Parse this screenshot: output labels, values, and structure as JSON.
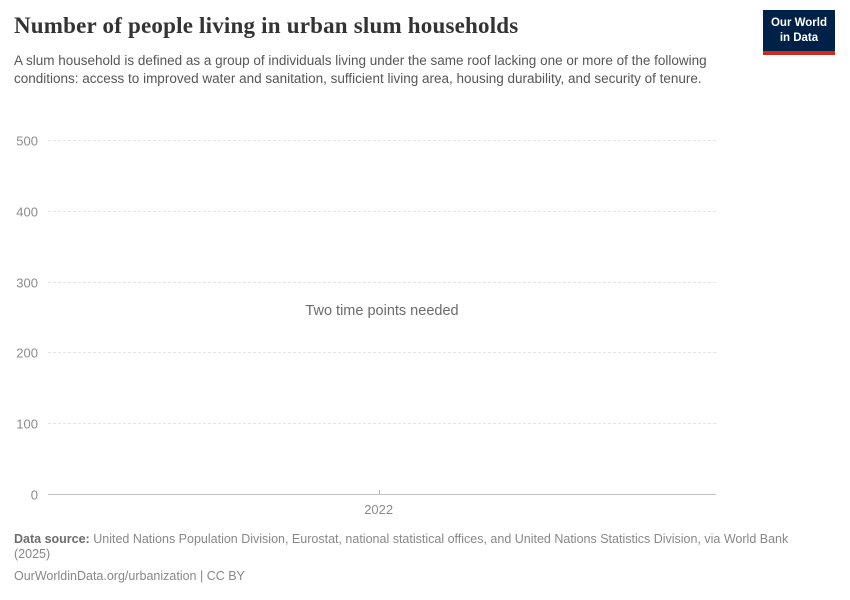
{
  "header": {
    "title": "Number of people living in urban slum households",
    "subtitle": "A slum household is defined as a group of individuals living under the same roof lacking one or more of the following conditions: access to improved water and sanitation, sufficient living area, housing durability, and security of tenure.",
    "logo": {
      "line1": "Our World",
      "line2": "in Data",
      "bg_color": "#002147",
      "stripe_color": "#cc2a1f"
    }
  },
  "chart_data": {
    "type": "line",
    "title": "Number of people living in urban slum households",
    "series": [],
    "message": "Two time points needed",
    "ylim": [
      0,
      500
    ],
    "yticks": [
      0,
      100,
      200,
      300,
      400,
      500
    ],
    "xticks": [
      "2022"
    ],
    "grid": "horizontal dashed, solid zero baseline",
    "gridline_color": "#e4e4e4",
    "axis_label_color": "#8c8c8c"
  },
  "footer": {
    "data_source_label": "Data source:",
    "data_source_text": "United Nations Population Division, Eurostat, national statistical offices, and United Nations Statistics Division, via World Bank (2025)",
    "attribution": "OurWorldinData.org/urbanization | CC BY"
  }
}
